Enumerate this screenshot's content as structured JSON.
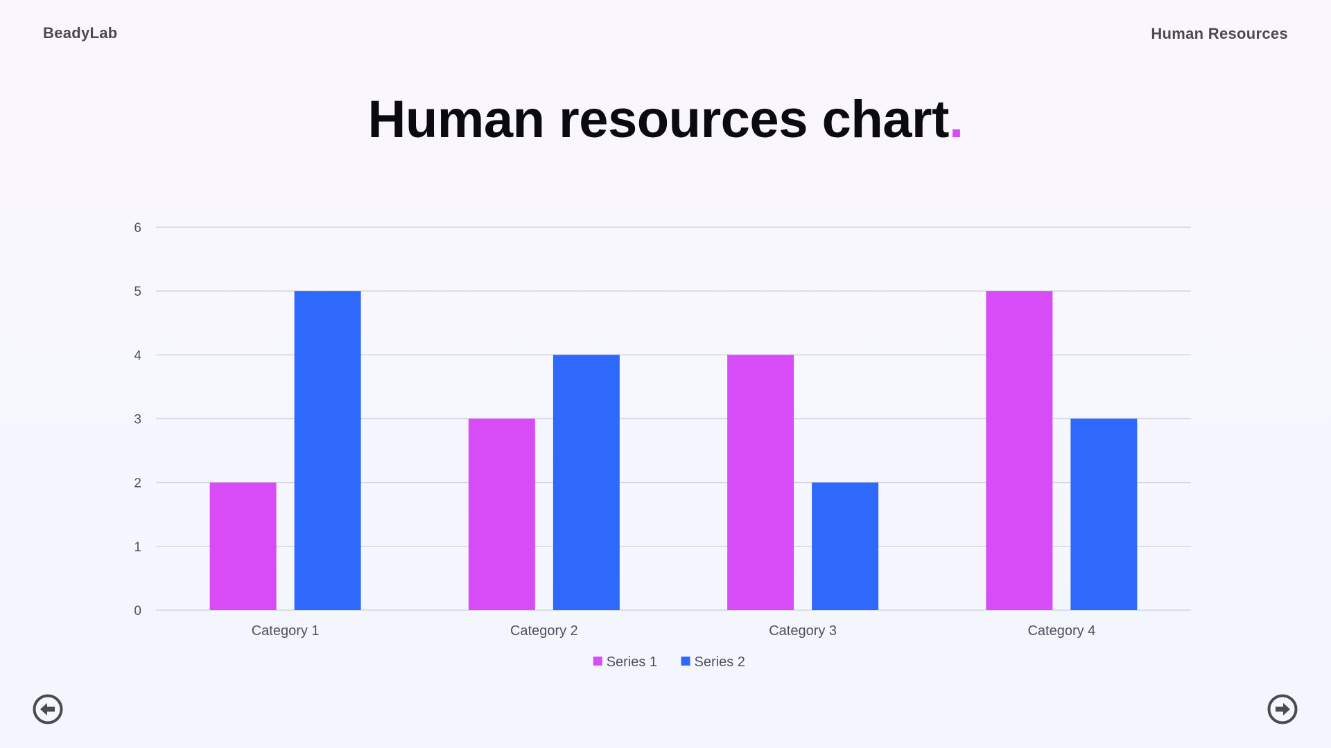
{
  "header": {
    "brand": "BeadyLab",
    "section": "Human Resources"
  },
  "slide": {
    "title": "Human resources chart",
    "title_dot": "."
  },
  "colors": {
    "series1": "#d84cf7",
    "series2": "#2f69fc",
    "accent": "#d84cf7",
    "grid": "#d4d5dd",
    "tick_text": "#505058"
  },
  "chart_data": {
    "type": "bar",
    "categories": [
      "Category 1",
      "Category 2",
      "Category 3",
      "Category 4"
    ],
    "series": [
      {
        "name": "Series 1",
        "values": [
          2,
          3,
          4,
          5
        ]
      },
      {
        "name": "Series 2",
        "values": [
          5,
          4,
          2,
          3
        ]
      }
    ],
    "ylim": [
      0,
      6
    ],
    "yticks": [
      0,
      1,
      2,
      3,
      4,
      5,
      6
    ],
    "grid": true,
    "legend": "bottom"
  },
  "nav": {
    "prev_icon": "arrow-left-circle-icon",
    "next_icon": "arrow-right-circle-icon"
  }
}
